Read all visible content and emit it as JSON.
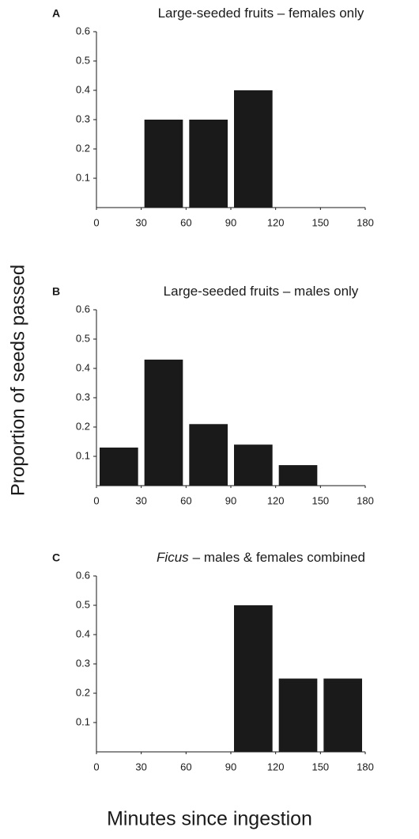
{
  "ylabel": "Proportion of seeds passed",
  "xlabel": "Minutes since ingestion",
  "chart_data": [
    {
      "type": "histogram",
      "panel_label": "A",
      "title_parts": [
        {
          "text": "Large-seeded fruits – females only",
          "italic": false
        }
      ],
      "bins": [
        0,
        30,
        60,
        90,
        120,
        150,
        180
      ],
      "values": [
        0,
        0.3,
        0.3,
        0.4,
        0,
        0
      ],
      "color": "#1a1a1a",
      "xlim": [
        0,
        180
      ],
      "xticks": [
        0,
        30,
        60,
        90,
        120,
        150,
        180
      ],
      "ylim": [
        0,
        0.6
      ],
      "yticks": [
        0.1,
        0.2,
        0.3,
        0.4,
        0.5,
        0.6
      ]
    },
    {
      "type": "histogram",
      "panel_label": "B",
      "title_parts": [
        {
          "text": "Large-seeded fruits – males only",
          "italic": false
        }
      ],
      "bins": [
        0,
        30,
        60,
        90,
        120,
        150,
        180
      ],
      "values": [
        0.13,
        0.43,
        0.21,
        0.14,
        0.07,
        0
      ],
      "color": "#1a1a1a",
      "xlim": [
        0,
        180
      ],
      "xticks": [
        0,
        30,
        60,
        90,
        120,
        150,
        180
      ],
      "ylim": [
        0,
        0.6
      ],
      "yticks": [
        0.1,
        0.2,
        0.3,
        0.4,
        0.5,
        0.6
      ]
    },
    {
      "type": "histogram",
      "panel_label": "C",
      "title_parts": [
        {
          "text": "Ficus",
          "italic": true
        },
        {
          "text": "– males & females combined",
          "italic": false
        }
      ],
      "bins": [
        0,
        30,
        60,
        90,
        120,
        150,
        180
      ],
      "values": [
        0,
        0,
        0,
        0.5,
        0.25,
        0.25
      ],
      "color": "#1a1a1a",
      "xlim": [
        0,
        180
      ],
      "xticks": [
        0,
        30,
        60,
        90,
        120,
        150,
        180
      ],
      "ylim": [
        0,
        0.6
      ],
      "yticks": [
        0.1,
        0.2,
        0.3,
        0.4,
        0.5,
        0.6
      ]
    }
  ]
}
